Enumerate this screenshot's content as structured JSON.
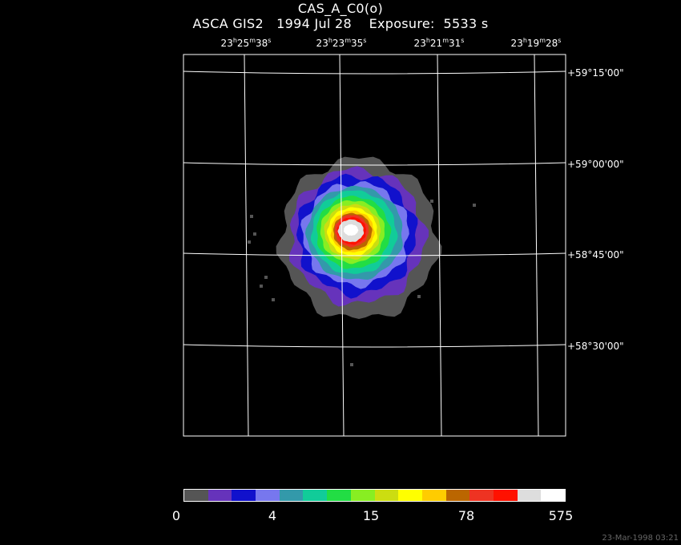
{
  "header": {
    "object": "CAS_A_C0(o)",
    "instrument": "ASCA GIS2",
    "date": "1994 Jul 28",
    "exposure_label": "Exposure:",
    "exposure_value": "5533 s"
  },
  "chart_data": {
    "type": "heatmap",
    "ra_ticks": [
      {
        "h": "23",
        "m": "25",
        "s": "38"
      },
      {
        "h": "23",
        "m": "23",
        "s": "35"
      },
      {
        "h": "23",
        "m": "21",
        "s": "31"
      },
      {
        "h": "23",
        "m": "19",
        "s": "28"
      }
    ],
    "dec_ticks": [
      "+59°15'00\"",
      "+59°00'00\"",
      "+58°45'00\"",
      "+58°30'00\""
    ],
    "colorbar": {
      "colors": [
        "#555555",
        "#6633bb",
        "#1111cc",
        "#7777ee",
        "#3399aa",
        "#11cc99",
        "#22dd44",
        "#88ee22",
        "#ccdd11",
        "#ffff00",
        "#ffcc00",
        "#bb6600",
        "#ee3322",
        "#ff1100",
        "#dddddd",
        "#ffffff"
      ],
      "labels": [
        "0",
        "4",
        "15",
        "78",
        "575"
      ]
    },
    "grid": true,
    "scale": "log"
  },
  "footer": {
    "timestamp": "23-Mar-1998 03:21"
  }
}
